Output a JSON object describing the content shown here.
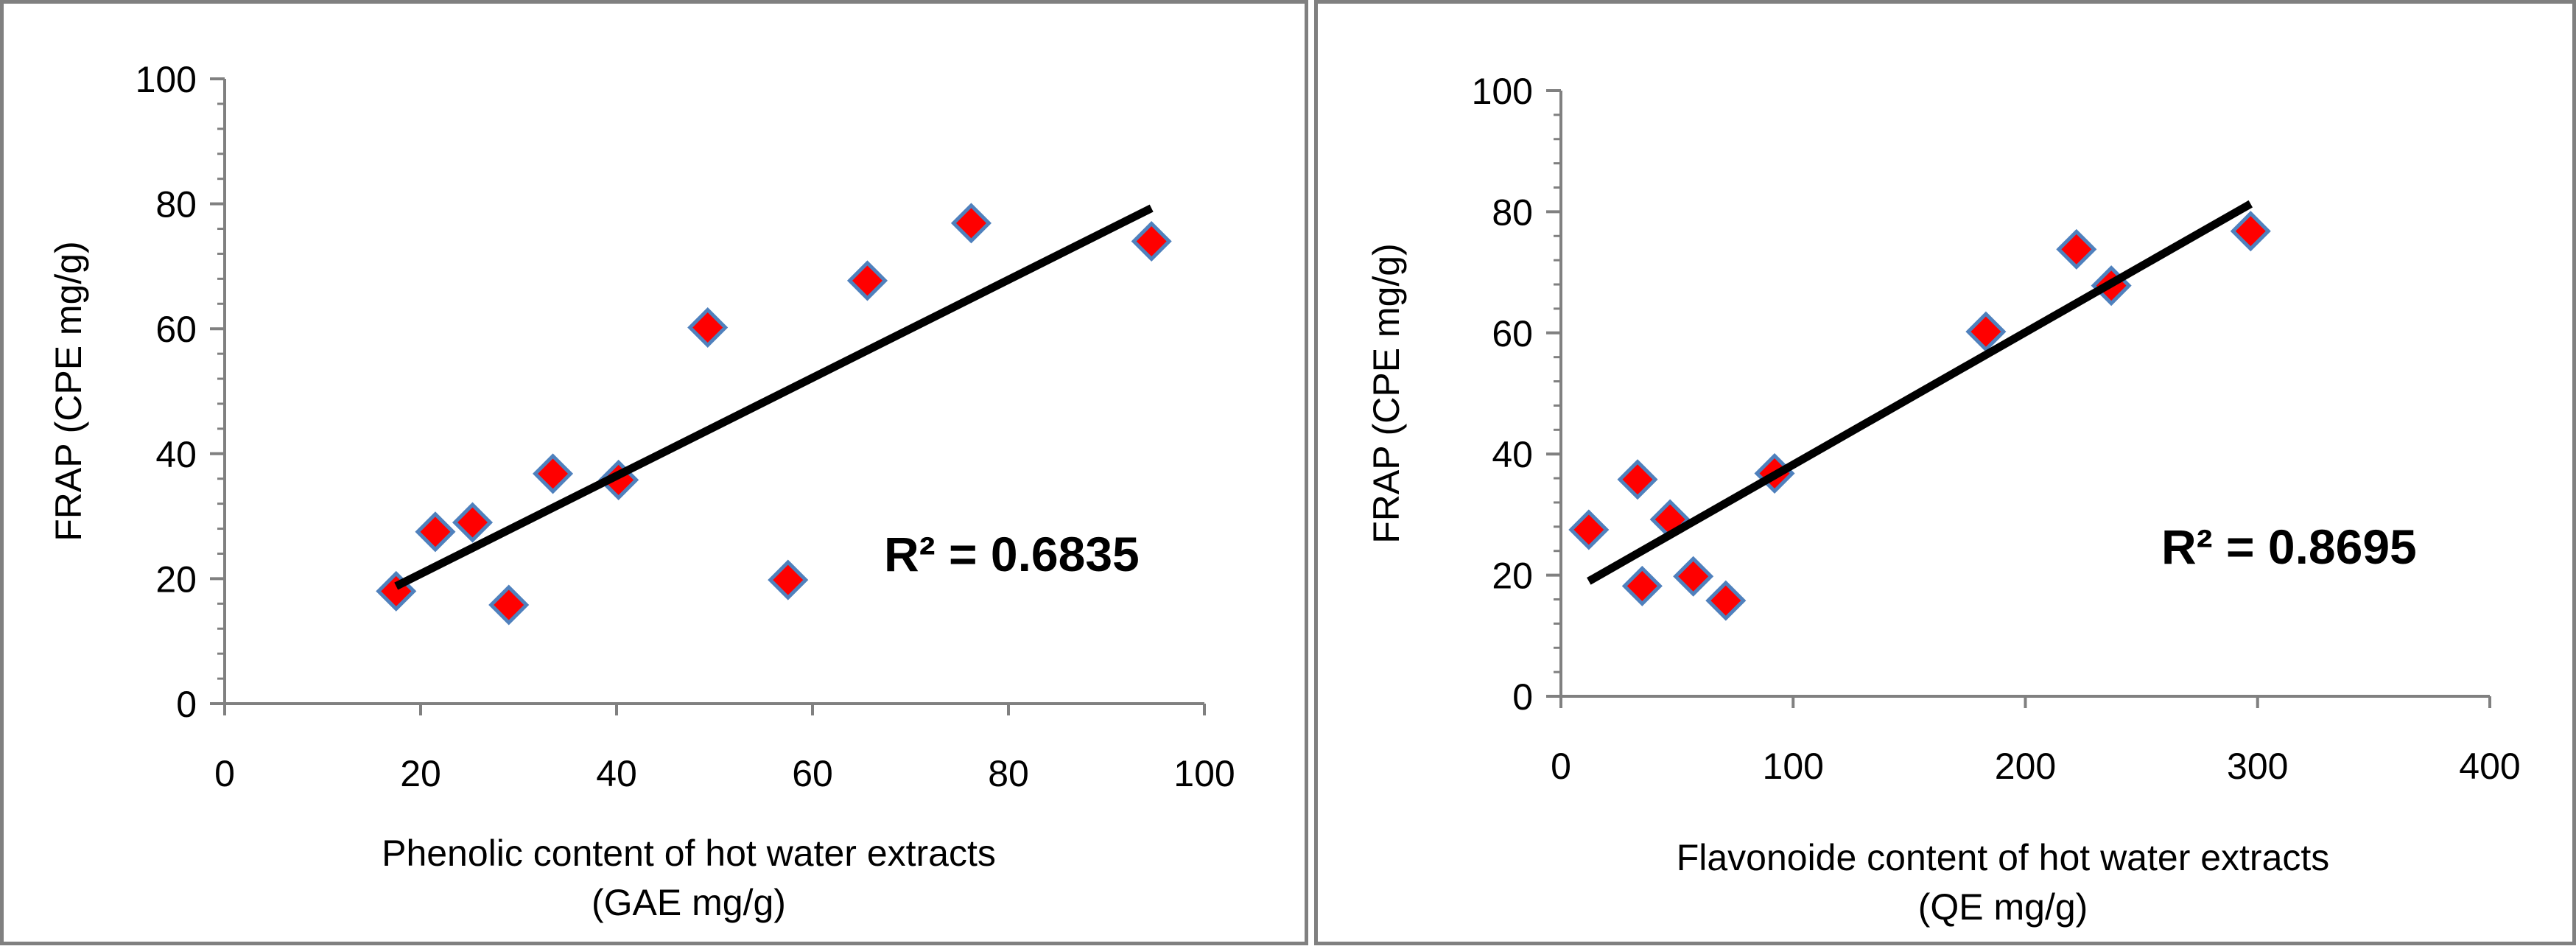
{
  "colors": {
    "marker_fill": "#ff0000",
    "marker_stroke": "#4f81bd",
    "trendline": "#000000",
    "axis": "#808080",
    "frame": "#808080"
  },
  "chart_data": [
    {
      "type": "scatter",
      "title": "",
      "xlabel_lines": [
        "Phenolic content of hot water extracts",
        "(GAE mg/g)"
      ],
      "ylabel": "FRAP (CPE mg/g)",
      "xlim": [
        0,
        100
      ],
      "ylim": [
        0,
        100
      ],
      "xticks": [
        0,
        20,
        40,
        60,
        80,
        100
      ],
      "yticks": [
        0,
        20,
        40,
        60,
        80,
        100
      ],
      "x": [
        17.5,
        21.5,
        25.3,
        29.0,
        33.5,
        40.2,
        49.3,
        57.5,
        65.6,
        76.2,
        94.6
      ],
      "y": [
        18.0,
        27.5,
        29.0,
        15.8,
        36.8,
        35.8,
        60.2,
        19.8,
        67.7,
        76.9,
        74.0
      ],
      "trendline": {
        "x": [
          17.5,
          94.6
        ],
        "y": [
          18.8,
          79.3
        ]
      },
      "annotation": "R² = 0.6835",
      "legend": "none"
    },
    {
      "type": "scatter",
      "title": "",
      "xlabel_lines": [
        "Flavonoide content of hot water extracts",
        "(QE mg/g)"
      ],
      "ylabel": "FRAP (CPE mg/g)",
      "xlim": [
        0,
        400
      ],
      "ylim": [
        0,
        100
      ],
      "xticks": [
        0,
        100,
        200,
        300,
        400
      ],
      "yticks": [
        0,
        20,
        40,
        60,
        80,
        100
      ],
      "x": [
        12,
        33,
        35,
        47,
        57,
        71,
        92,
        183,
        222,
        237,
        297
      ],
      "y": [
        27.5,
        35.8,
        18.2,
        29.2,
        19.8,
        15.8,
        36.8,
        60.2,
        73.8,
        67.8,
        76.8
      ],
      "trendline": {
        "x": [
          12,
          297
        ],
        "y": [
          19.0,
          81.3
        ]
      },
      "annotation": "R² = 0.8695",
      "legend": "none"
    }
  ]
}
